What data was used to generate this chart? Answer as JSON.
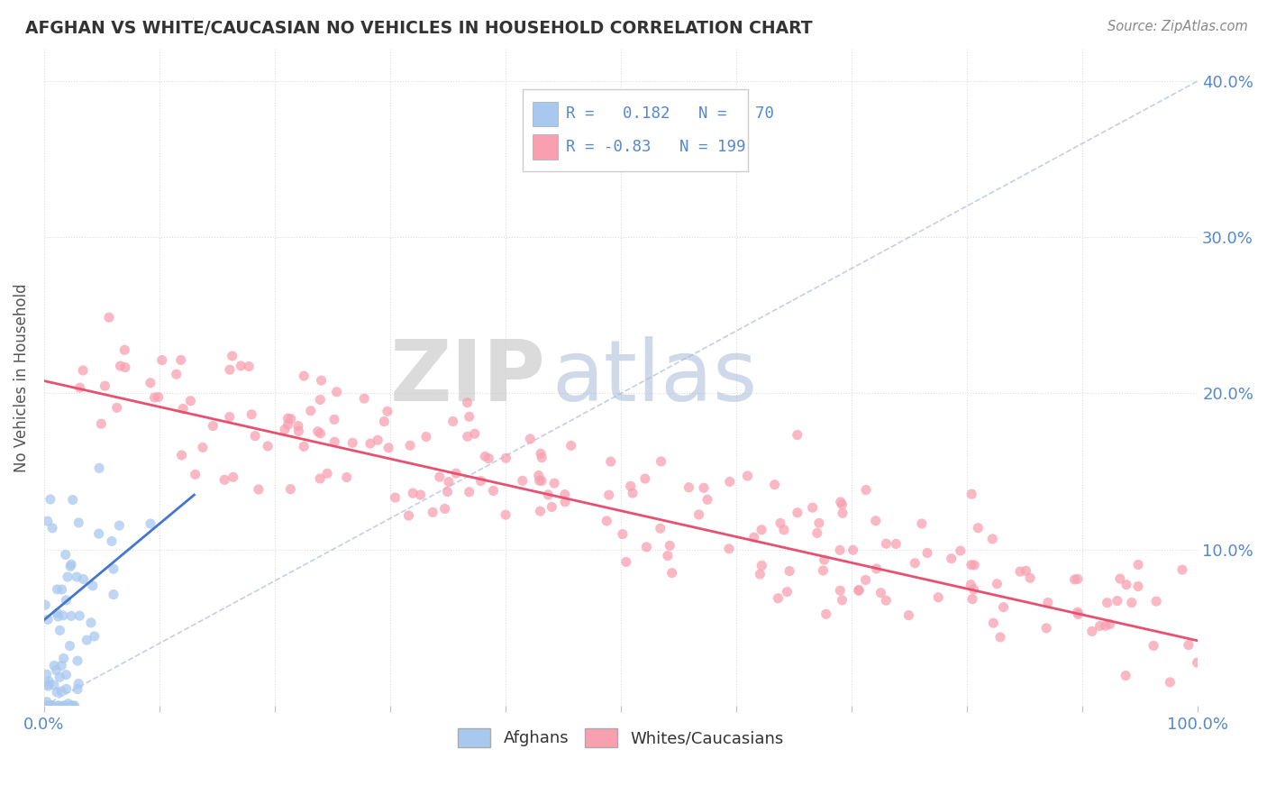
{
  "title": "AFGHAN VS WHITE/CAUCASIAN NO VEHICLES IN HOUSEHOLD CORRELATION CHART",
  "source": "Source: ZipAtlas.com",
  "ylabel": "No Vehicles in Household",
  "xlim": [
    0.0,
    1.0
  ],
  "ylim": [
    0.0,
    0.42
  ],
  "x_ticks": [
    0.0,
    0.1,
    0.2,
    0.3,
    0.4,
    0.5,
    0.6,
    0.7,
    0.8,
    0.9,
    1.0
  ],
  "y_ticks": [
    0.0,
    0.1,
    0.2,
    0.3,
    0.4
  ],
  "afghan_color": "#a8c8f0",
  "afghan_edge_color": "#7aaad8",
  "caucasian_color": "#f8a0b0",
  "caucasian_edge_color": "#e07090",
  "afghan_line_color": "#4477cc",
  "caucasian_line_color": "#e85070",
  "diag_line_color": "#aabbdd",
  "afghan_R": 0.182,
  "afghan_N": 70,
  "caucasian_R": -0.83,
  "caucasian_N": 199,
  "tick_label_color": "#5588cc",
  "title_color": "#333333",
  "source_color": "#888888",
  "ylabel_color": "#555555",
  "watermark_zip_color": "#cccccc",
  "watermark_atlas_color": "#aabbd8",
  "background_color": "#ffffff",
  "grid_color": "#dddddd",
  "legend_border_color": "#cccccc"
}
